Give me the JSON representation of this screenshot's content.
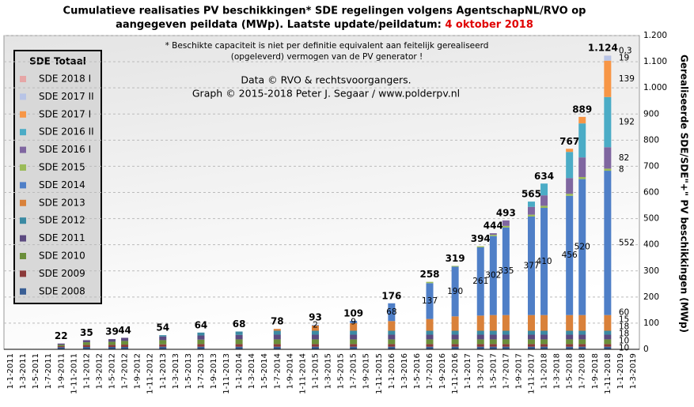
{
  "chart_data": {
    "type": "stacked_bar",
    "title_line1": "Cumulatieve realisaties PV beschikkingen*  SDE regelingen  volgens AgentschapNL/RVO  op",
    "title_line2": "aangegeven peildata (MWp). Laatste update/peildatum: ",
    "title_date": "4 oktober 2018",
    "title_date_color": "#e00000",
    "note_line1": "* Beschikte capaciteit is niet per definitie equivalent aan feitelijk gerealiseerd",
    "note_line2": "(opgeleverd) vermogen van de PV generator !",
    "credit_line1": "Data © RVO & rechtsvoorgangers.",
    "credit_line2": "Graph  © 2015-2018  Peter J. Segaar / www.polderpv.nl",
    "y_label": "Gerealiseerde SDE/SDE\"+\" PV beschikkingen (MWp)",
    "legend_title": "SDE Totaal",
    "grid": true,
    "categories": [
      "1-1-2011",
      "1-3-2011",
      "1-5-2011",
      "1-7-2011",
      "1-9-2011",
      "1-11-2011",
      "1-1-2012",
      "1-3-2012",
      "1-5-2012",
      "1-7-2012",
      "1-9-2012",
      "1-11-2012",
      "1-1-2013",
      "1-3-2013",
      "1-5-2013",
      "1-7-2013",
      "1-9-2013",
      "1-11-2013",
      "1-1-2014",
      "1-3-2014",
      "1-5-2014",
      "1-7-2014",
      "1-9-2014",
      "1-11-2014",
      "1-1-2015",
      "1-3-2015",
      "1-5-2015",
      "1-7-2015",
      "1-9-2015",
      "1-11-2015",
      "1-1-2016",
      "1-3-2016",
      "1-5-2016",
      "1-7-2016",
      "1-9-2016",
      "1-11-2016",
      "1-1-2017",
      "1-3-2017",
      "1-5-2017",
      "1-7-2017",
      "1-9-2017",
      "1-11-2017",
      "1-1-2018",
      "1-3-2018",
      "1-5-2018",
      "1-7-2018",
      "1-9-2018",
      "1-11-2018",
      "1-1-2019",
      "1-3-2019"
    ],
    "ylim": [
      0,
      1200
    ],
    "yticks": [
      0,
      100,
      200,
      300,
      400,
      500,
      600,
      700,
      800,
      900,
      {
        "value": 1000,
        "label": "1.000"
      },
      {
        "value": 1100,
        "label": "1.100"
      },
      {
        "value": 1200,
        "label": "1.200"
      }
    ],
    "totals": {
      "values": [
        null,
        null,
        null,
        null,
        22,
        null,
        35,
        null,
        39,
        44,
        null,
        null,
        54,
        null,
        null,
        64,
        null,
        null,
        68,
        null,
        null,
        78,
        null,
        null,
        93,
        null,
        null,
        109,
        null,
        null,
        176,
        null,
        null,
        258,
        null,
        319,
        null,
        394,
        444,
        493,
        null,
        565,
        634,
        null,
        767,
        889,
        null,
        1124,
        null,
        null
      ],
      "value_labels": [
        null,
        null,
        null,
        null,
        null,
        null,
        null,
        null,
        null,
        null,
        null,
        null,
        null,
        null,
        null,
        null,
        null,
        null,
        null,
        null,
        null,
        null,
        null,
        null,
        null,
        null,
        null,
        null,
        null,
        null,
        null,
        null,
        null,
        null,
        null,
        null,
        null,
        null,
        null,
        null,
        null,
        null,
        null,
        null,
        null,
        null,
        null,
        "1.124",
        null,
        null
      ]
    },
    "series": [
      {
        "name": "SDE 2008",
        "color": "#3a5f95",
        "values": [
          null,
          null,
          null,
          null,
          8,
          null,
          9,
          null,
          9,
          9,
          null,
          null,
          10,
          null,
          null,
          10,
          null,
          null,
          10,
          null,
          null,
          10,
          null,
          null,
          10,
          null,
          null,
          10,
          null,
          null,
          10,
          null,
          null,
          10,
          null,
          10,
          null,
          10,
          10,
          10,
          null,
          10,
          10,
          null,
          10,
          10,
          null,
          10,
          null,
          null
        ]
      },
      {
        "name": "SDE 2009",
        "color": "#8b3a3a",
        "values": [
          null,
          null,
          null,
          null,
          4,
          null,
          8,
          null,
          8,
          9,
          null,
          null,
          9,
          null,
          null,
          10,
          null,
          null,
          10,
          null,
          null,
          10,
          null,
          null,
          10,
          null,
          null,
          10,
          null,
          null,
          10,
          null,
          null,
          10,
          null,
          10,
          null,
          10,
          10,
          10,
          null,
          10,
          10,
          null,
          10,
          10,
          null,
          10,
          null,
          null
        ]
      },
      {
        "name": "SDE 2010",
        "color": "#6b8e3a",
        "values": [
          null,
          null,
          null,
          null,
          5,
          null,
          10,
          null,
          12,
          14,
          null,
          null,
          16,
          null,
          null,
          17,
          null,
          null,
          18,
          null,
          null,
          18,
          null,
          null,
          18,
          null,
          null,
          18,
          null,
          null,
          18,
          null,
          null,
          18,
          null,
          18,
          null,
          18,
          18,
          18,
          null,
          18,
          18,
          null,
          18,
          18,
          null,
          18,
          null,
          null
        ]
      },
      {
        "name": "SDE 2011",
        "color": "#5c4a80",
        "values": [
          null,
          null,
          null,
          null,
          5,
          null,
          8,
          null,
          10,
          12,
          null,
          null,
          14,
          null,
          null,
          16,
          null,
          null,
          17,
          null,
          null,
          18,
          null,
          null,
          18,
          null,
          null,
          18,
          null,
          null,
          18,
          null,
          null,
          18,
          null,
          18,
          null,
          18,
          18,
          18,
          null,
          18,
          18,
          null,
          18,
          18,
          null,
          18,
          null,
          null
        ]
      },
      {
        "name": "SDE 2012",
        "color": "#3b8aa3",
        "values": [
          null,
          null,
          null,
          null,
          null,
          null,
          null,
          null,
          null,
          null,
          null,
          null,
          5,
          null,
          null,
          11,
          null,
          null,
          13,
          null,
          null,
          15,
          null,
          null,
          15,
          null,
          null,
          15,
          null,
          null,
          15,
          null,
          null,
          15,
          null,
          15,
          null,
          15,
          15,
          15,
          null,
          15,
          15,
          null,
          15,
          15,
          null,
          15,
          null,
          null
        ]
      },
      {
        "name": "SDE 2013",
        "color": "#d9813a",
        "values": [
          null,
          null,
          null,
          null,
          null,
          null,
          null,
          null,
          null,
          null,
          null,
          null,
          null,
          null,
          null,
          null,
          null,
          null,
          null,
          null,
          null,
          7,
          null,
          null,
          20,
          null,
          null,
          29,
          null,
          null,
          37,
          null,
          null,
          45,
          null,
          55,
          null,
          58,
          60,
          60,
          null,
          60,
          60,
          null,
          60,
          60,
          null,
          60,
          null,
          null
        ]
      },
      {
        "name": "SDE 2014",
        "color": "#4f7fc7",
        "label_color": "#2222cc",
        "values": [
          null,
          null,
          null,
          null,
          null,
          null,
          null,
          null,
          null,
          null,
          null,
          null,
          null,
          null,
          null,
          null,
          null,
          null,
          null,
          null,
          null,
          null,
          null,
          null,
          2,
          null,
          null,
          9,
          null,
          null,
          68,
          null,
          null,
          137,
          null,
          190,
          null,
          261,
          302,
          335,
          null,
          377,
          410,
          null,
          456,
          520,
          null,
          552,
          null,
          null
        ]
      },
      {
        "name": "SDE 2015",
        "color": "#9bbb59",
        "values": [
          null,
          null,
          null,
          null,
          null,
          null,
          null,
          null,
          null,
          null,
          null,
          null,
          null,
          null,
          null,
          null,
          null,
          null,
          null,
          null,
          null,
          null,
          null,
          null,
          null,
          null,
          null,
          null,
          null,
          null,
          0,
          null,
          null,
          5,
          null,
          3,
          null,
          4,
          5,
          6,
          null,
          7,
          8,
          null,
          8,
          8,
          null,
          8,
          null,
          null
        ]
      },
      {
        "name": "SDE 2016 I",
        "color": "#7f66a0",
        "values": [
          null,
          null,
          null,
          null,
          null,
          null,
          null,
          null,
          null,
          null,
          null,
          null,
          null,
          null,
          null,
          null,
          null,
          null,
          null,
          null,
          null,
          null,
          null,
          null,
          null,
          null,
          null,
          null,
          null,
          null,
          null,
          null,
          null,
          null,
          null,
          null,
          null,
          null,
          6,
          21,
          null,
          30,
          40,
          null,
          60,
          75,
          null,
          82,
          null,
          null
        ]
      },
      {
        "name": "SDE 2016 II",
        "color": "#4bacc6",
        "values": [
          null,
          null,
          null,
          null,
          null,
          null,
          null,
          null,
          null,
          null,
          null,
          null,
          null,
          null,
          null,
          null,
          null,
          null,
          null,
          null,
          null,
          null,
          null,
          null,
          null,
          null,
          null,
          null,
          null,
          null,
          null,
          null,
          null,
          null,
          null,
          null,
          null,
          null,
          null,
          null,
          null,
          20,
          45,
          null,
          100,
          130,
          null,
          192,
          null,
          null
        ]
      },
      {
        "name": "SDE 2017 I",
        "color": "#f79646",
        "values": [
          null,
          null,
          null,
          null,
          null,
          null,
          null,
          null,
          null,
          null,
          null,
          null,
          null,
          null,
          null,
          null,
          null,
          null,
          null,
          null,
          null,
          null,
          null,
          null,
          null,
          null,
          null,
          null,
          null,
          null,
          null,
          null,
          null,
          null,
          null,
          null,
          null,
          null,
          null,
          null,
          null,
          null,
          null,
          null,
          12,
          25,
          null,
          139,
          null,
          null
        ]
      },
      {
        "name": "SDE 2017 II",
        "color": "#b8c4e6",
        "values": [
          null,
          null,
          null,
          null,
          null,
          null,
          null,
          null,
          null,
          null,
          null,
          null,
          null,
          null,
          null,
          null,
          null,
          null,
          null,
          null,
          null,
          null,
          null,
          null,
          null,
          null,
          null,
          null,
          null,
          null,
          null,
          null,
          null,
          null,
          null,
          null,
          null,
          null,
          null,
          null,
          null,
          null,
          null,
          null,
          null,
          null,
          null,
          19,
          null,
          null
        ]
      },
      {
        "name": "SDE 2018 I",
        "color": "#e6a6a6",
        "values": [
          null,
          null,
          null,
          null,
          null,
          null,
          null,
          null,
          null,
          null,
          null,
          null,
          null,
          null,
          null,
          null,
          null,
          null,
          null,
          null,
          null,
          null,
          null,
          null,
          null,
          null,
          null,
          null,
          null,
          null,
          null,
          null,
          null,
          null,
          null,
          null,
          null,
          null,
          null,
          null,
          null,
          null,
          null,
          null,
          null,
          null,
          null,
          0.3,
          null,
          null
        ],
        "value_labels": [
          null,
          null,
          null,
          null,
          null,
          null,
          null,
          null,
          null,
          null,
          null,
          null,
          null,
          null,
          null,
          null,
          null,
          null,
          null,
          null,
          null,
          null,
          null,
          null,
          null,
          null,
          null,
          null,
          null,
          null,
          null,
          null,
          null,
          null,
          null,
          null,
          null,
          null,
          null,
          null,
          null,
          null,
          null,
          null,
          null,
          null,
          null,
          "0,3",
          null,
          null
        ]
      }
    ]
  }
}
